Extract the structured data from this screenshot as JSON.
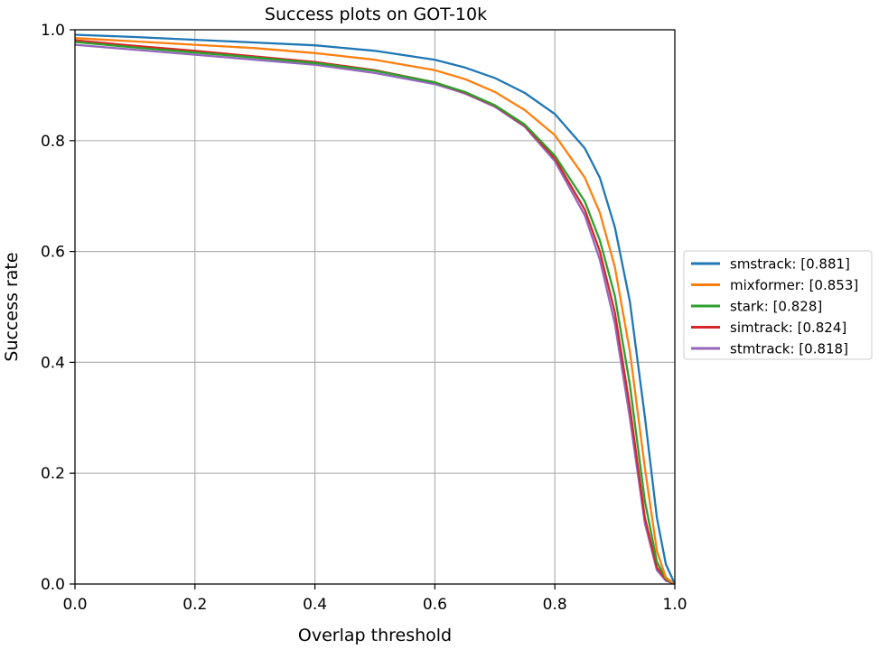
{
  "chart_data": {
    "type": "line",
    "title": "Success plots on GOT-10k",
    "xlabel": "Overlap threshold",
    "ylabel": "Success rate",
    "xlim": [
      0,
      1
    ],
    "ylim": [
      0,
      1
    ],
    "grid": true,
    "legend_position": "right",
    "xticks": [
      "0.0",
      "0.2",
      "0.4",
      "0.6",
      "0.8",
      "1.0"
    ],
    "yticks": [
      "0.0",
      "0.2",
      "0.4",
      "0.6",
      "0.8",
      "1.0"
    ],
    "series": [
      {
        "name": "smstrack",
        "score": "0.881",
        "legend_label": "smstrack: [0.881]",
        "color": "#1f77b4",
        "x": [
          0,
          0.1,
          0.2,
          0.3,
          0.4,
          0.5,
          0.6,
          0.65,
          0.7,
          0.75,
          0.8,
          0.85,
          0.875,
          0.9,
          0.925,
          0.95,
          0.97,
          0.985,
          1.0
        ],
        "y": [
          0.991,
          0.987,
          0.982,
          0.977,
          0.972,
          0.962,
          0.946,
          0.932,
          0.913,
          0.886,
          0.848,
          0.786,
          0.733,
          0.644,
          0.51,
          0.302,
          0.12,
          0.036,
          0.0
        ]
      },
      {
        "name": "mixformer",
        "score": "0.853",
        "legend_label": "mixformer: [0.853]",
        "color": "#ff7f0e",
        "x": [
          0,
          0.1,
          0.2,
          0.3,
          0.4,
          0.5,
          0.6,
          0.65,
          0.7,
          0.75,
          0.8,
          0.85,
          0.875,
          0.9,
          0.925,
          0.95,
          0.97,
          0.985,
          1.0
        ],
        "y": [
          0.985,
          0.979,
          0.973,
          0.967,
          0.958,
          0.946,
          0.927,
          0.911,
          0.888,
          0.855,
          0.81,
          0.733,
          0.67,
          0.572,
          0.42,
          0.21,
          0.06,
          0.012,
          0.0
        ]
      },
      {
        "name": "stark",
        "score": "0.828",
        "legend_label": "stark: [0.828]",
        "color": "#2ca02c",
        "x": [
          0,
          0.1,
          0.2,
          0.3,
          0.4,
          0.5,
          0.6,
          0.65,
          0.7,
          0.75,
          0.8,
          0.85,
          0.875,
          0.9,
          0.925,
          0.95,
          0.97,
          0.985,
          1.0
        ],
        "y": [
          0.978,
          0.968,
          0.959,
          0.95,
          0.94,
          0.926,
          0.905,
          0.888,
          0.864,
          0.829,
          0.773,
          0.69,
          0.62,
          0.52,
          0.36,
          0.15,
          0.04,
          0.01,
          0.0
        ]
      },
      {
        "name": "simtrack",
        "score": "0.824",
        "legend_label": "simtrack: [0.824]",
        "color": "#d62728",
        "x": [
          0,
          0.1,
          0.2,
          0.3,
          0.4,
          0.5,
          0.6,
          0.65,
          0.7,
          0.75,
          0.8,
          0.85,
          0.875,
          0.9,
          0.925,
          0.95,
          0.97,
          0.985,
          1.0
        ],
        "y": [
          0.981,
          0.971,
          0.962,
          0.952,
          0.942,
          0.927,
          0.905,
          0.887,
          0.863,
          0.827,
          0.768,
          0.675,
          0.6,
          0.49,
          0.32,
          0.12,
          0.03,
          0.008,
          0.0
        ]
      },
      {
        "name": "stmtrack",
        "score": "0.818",
        "legend_label": "stmtrack: [0.818]",
        "color": "#9467bd",
        "x": [
          0,
          0.1,
          0.2,
          0.3,
          0.4,
          0.5,
          0.6,
          0.65,
          0.7,
          0.75,
          0.8,
          0.85,
          0.875,
          0.9,
          0.925,
          0.95,
          0.97,
          0.985,
          1.0
        ],
        "y": [
          0.973,
          0.964,
          0.955,
          0.946,
          0.937,
          0.922,
          0.902,
          0.885,
          0.861,
          0.825,
          0.763,
          0.665,
          0.585,
          0.47,
          0.3,
          0.11,
          0.025,
          0.006,
          0.0
        ]
      }
    ]
  }
}
